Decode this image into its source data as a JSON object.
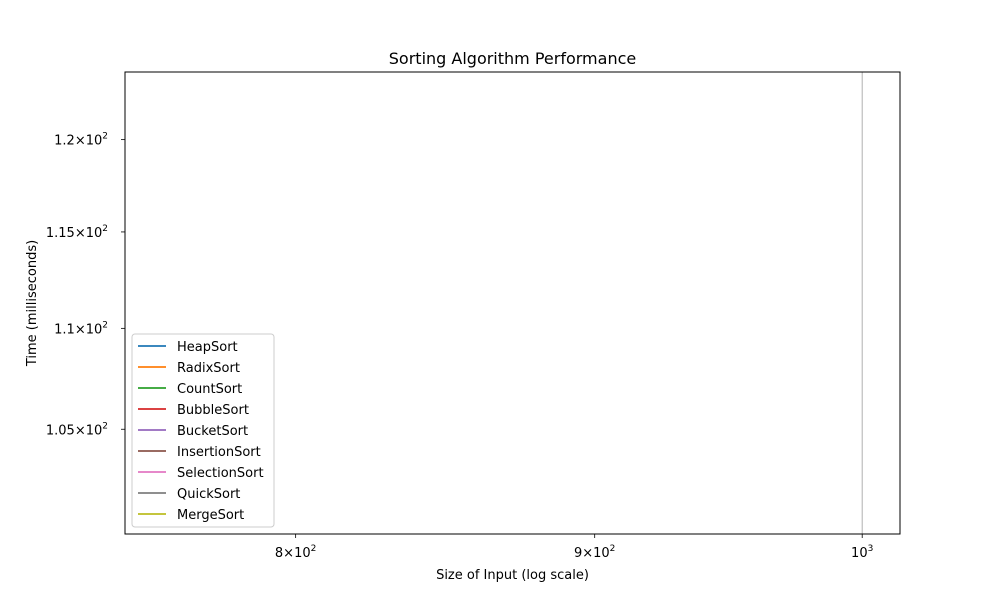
{
  "chart_data": {
    "type": "line",
    "title": "Sorting Algorithm Performance",
    "xlabel": "Size of Input (log scale)",
    "ylabel": "Time (milliseconds)",
    "xscale": "log",
    "yscale": "log",
    "xlim": [
      748,
      1015
    ],
    "ylim": [
      100.05,
      123.8
    ],
    "x_ticks": [
      {
        "value": 800,
        "mantissa": "8",
        "base": "10",
        "exp": "2"
      },
      {
        "value": 900,
        "mantissa": "9",
        "base": "10",
        "exp": "2"
      },
      {
        "value": 1000,
        "mantissa": "",
        "base": "10",
        "exp": "3"
      }
    ],
    "y_ticks": [
      {
        "value": 105,
        "mantissa": "1.05",
        "base": "10",
        "exp": "2"
      },
      {
        "value": 110,
        "mantissa": "1.1",
        "base": "10",
        "exp": "2"
      },
      {
        "value": 115,
        "mantissa": "1.15",
        "base": "10",
        "exp": "2"
      },
      {
        "value": 120,
        "mantissa": "1.2",
        "base": "10",
        "exp": "2"
      }
    ],
    "vline_x": 1000,
    "vline_color": "#b0b0b0",
    "grid": false,
    "legend_position": "lower left",
    "series": [
      {
        "name": "HeapSort",
        "color": "#1f77b4",
        "points": []
      },
      {
        "name": "RadixSort",
        "color": "#ff7f0e",
        "points": []
      },
      {
        "name": "CountSort",
        "color": "#2ca02c",
        "points": []
      },
      {
        "name": "BubbleSort",
        "color": "#d62728",
        "points": []
      },
      {
        "name": "BucketSort",
        "color": "#9467bd",
        "points": []
      },
      {
        "name": "InsertionSort",
        "color": "#8c564b",
        "points": []
      },
      {
        "name": "SelectionSort",
        "color": "#e377c2",
        "points": []
      },
      {
        "name": "QuickSort",
        "color": "#7f7f7f",
        "points": []
      },
      {
        "name": "MergeSort",
        "color": "#bcbd22",
        "points": []
      }
    ]
  }
}
